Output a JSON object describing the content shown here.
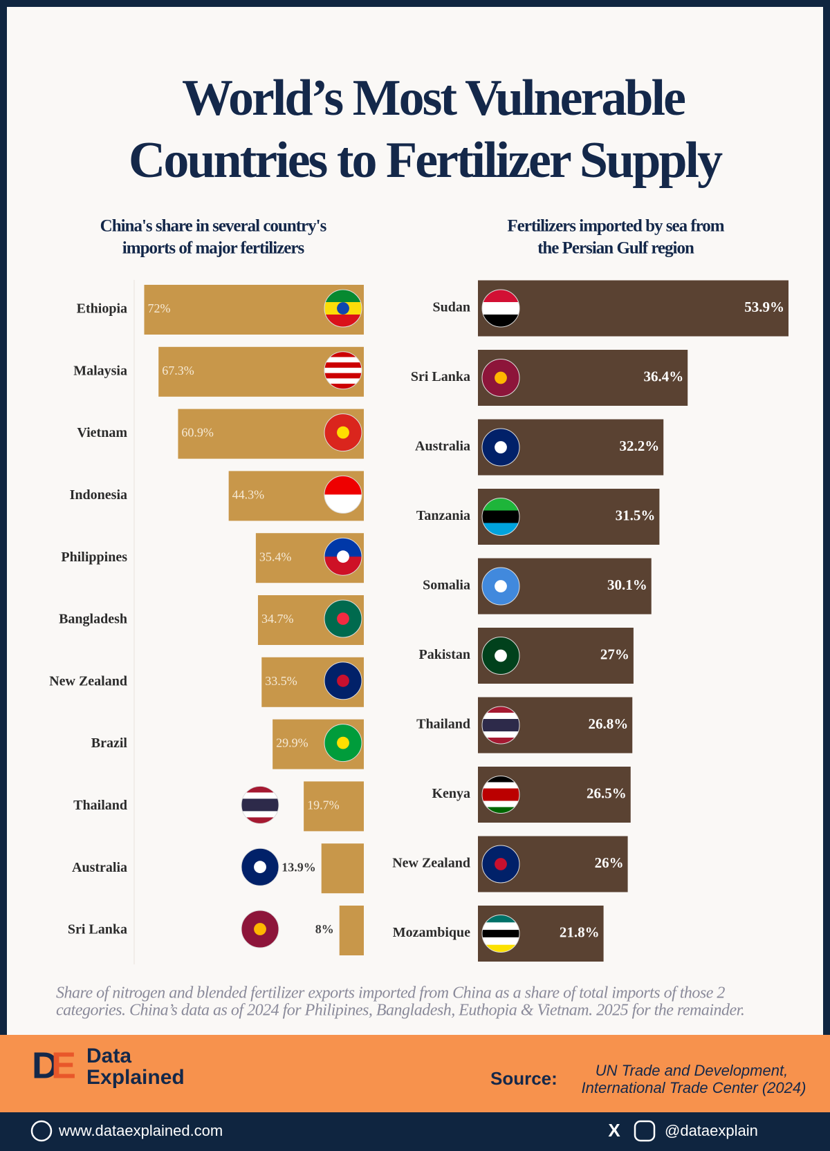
{
  "title": [
    "World’s Most Vulnerable",
    "Countries to Fertilizer Supply"
  ],
  "chart_data": [
    {
      "type": "bar",
      "title": [
        "China's share in several country's",
        "imports of major fertilizers"
      ],
      "categories": [
        "Ethiopia",
        "Malaysia",
        "Vietnam",
        "Indonesia",
        "Philippines",
        "Bangladesh",
        "New Zealand",
        "Brazil",
        "Thailand",
        "Australia",
        "Sri Lanka"
      ],
      "values": [
        72,
        67.3,
        60.9,
        44.3,
        35.4,
        34.7,
        33.5,
        29.9,
        19.7,
        13.9,
        8
      ],
      "value_labels": [
        "72%",
        "67.3%",
        "60.9%",
        "44.3%",
        "35.4%",
        "34.7%",
        "33.5%",
        "29.9%",
        "19.7%",
        "13.9%",
        "8%"
      ],
      "color": "#c8974a"
    },
    {
      "type": "bar",
      "title": [
        "Fertilizers imported by sea from",
        "the Persian Gulf region"
      ],
      "categories": [
        "Sudan",
        "Sri Lanka",
        "Australia",
        "Tanzania",
        "Somalia",
        "Pakistan",
        "Thailand",
        "Kenya",
        "New Zealand",
        "Mozambique"
      ],
      "values": [
        53.9,
        36.4,
        32.2,
        31.5,
        30.1,
        27,
        26.8,
        26.5,
        26,
        21.8
      ],
      "value_labels": [
        "53.9%",
        "36.4%",
        "32.2%",
        "31.5%",
        "30.1%",
        "27%",
        "26.8%",
        "26.5%",
        "26%",
        "21.8%"
      ],
      "color": "#5a4232"
    }
  ],
  "note": [
    "Share of nitrogen and blended fertilizer exports imported from China as a share of total imports of those 2",
    "categories. China’s data as of 2024 for Philipines, Bangladesh, Euthopia & Vietnam. 2025 for the remainder."
  ],
  "footer": {
    "brand": [
      "Data",
      "Explained"
    ],
    "source_label": "Source:",
    "source": [
      "UN Trade and Development,",
      "International Trade Center (2024)"
    ],
    "website": "www.dataexplained.com",
    "handle": "@dataexplain"
  }
}
